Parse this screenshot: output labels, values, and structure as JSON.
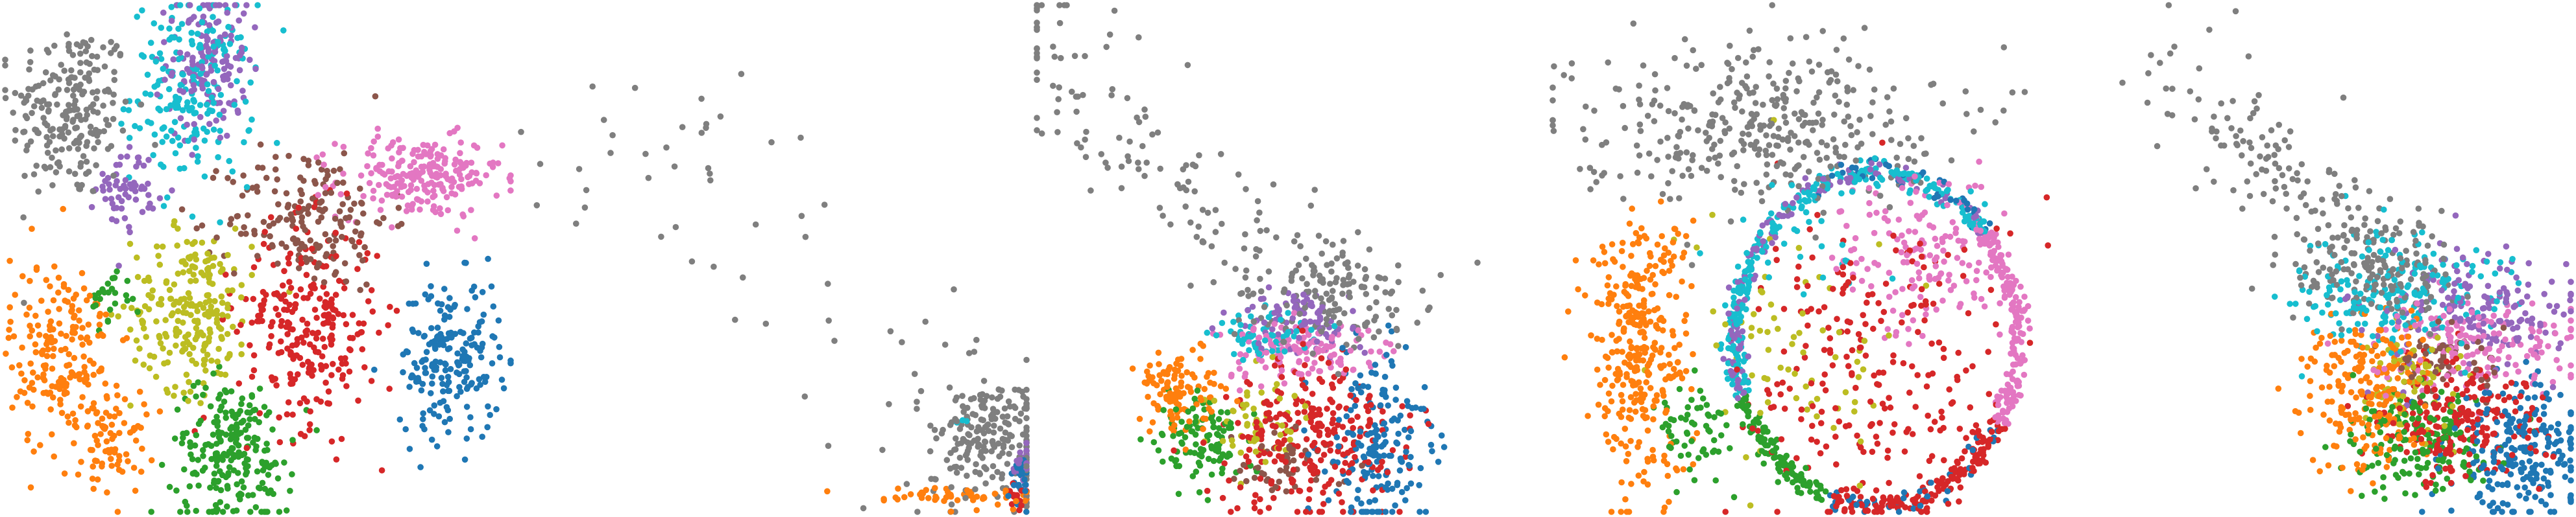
{
  "chart_data": [
    {
      "type": "scatter",
      "title": "",
      "xlabel": "",
      "ylabel": "",
      "axes_visible": false,
      "grid": false,
      "legend": "none",
      "xlim": [
        0,
        100
      ],
      "ylim": [
        0,
        100
      ],
      "point_color_names": [
        "blue",
        "orange",
        "green",
        "red",
        "purple",
        "brown",
        "pink",
        "gray",
        "olive",
        "cyan"
      ],
      "point_colors": [
        "#1f77b4",
        "#ff7f0e",
        "#2ca02c",
        "#d62728",
        "#9467bd",
        "#8c564b",
        "#e377c2",
        "#7f7f7f",
        "#bcbd22",
        "#17becf"
      ],
      "clusters": [
        {
          "color": "#7f7f7f",
          "cx": 13,
          "cy": 79,
          "sx": 6,
          "sy": 9,
          "n": 220
        },
        {
          "color": "#9467bd",
          "cx": 40,
          "cy": 89,
          "sx": 4,
          "sy": 8,
          "n": 150
        },
        {
          "color": "#17becf",
          "cx": 37,
          "cy": 83,
          "sx": 6,
          "sy": 9,
          "n": 200
        },
        {
          "color": "#9467bd",
          "cx": 24,
          "cy": 64,
          "sx": 3,
          "sy": 4,
          "n": 60
        },
        {
          "color": "#e377c2",
          "cx": 82,
          "cy": 66,
          "sx": 8,
          "sy": 4,
          "n": 220
        },
        {
          "color": "#8c564b",
          "cx": 60,
          "cy": 58,
          "sx": 8,
          "sy": 7,
          "n": 180
        },
        {
          "color": "#bcbd22",
          "cx": 37,
          "cy": 40,
          "sx": 6,
          "sy": 8,
          "n": 230
        },
        {
          "color": "#d62728",
          "cx": 60,
          "cy": 37,
          "sx": 7,
          "sy": 10,
          "n": 260
        },
        {
          "color": "#1f77b4",
          "cx": 88,
          "cy": 30,
          "sx": 5,
          "sy": 8,
          "n": 200
        },
        {
          "color": "#ff7f0e",
          "cx": 11,
          "cy": 31,
          "sx": 5,
          "sy": 10,
          "n": 200
        },
        {
          "color": "#ff7f0e",
          "cx": 22,
          "cy": 14,
          "sx": 3,
          "sy": 5,
          "n": 70
        },
        {
          "color": "#2ca02c",
          "cx": 45,
          "cy": 12,
          "sx": 6,
          "sy": 7,
          "n": 230
        },
        {
          "color": "#2ca02c",
          "cx": 21,
          "cy": 42,
          "sx": 2,
          "sy": 3,
          "n": 25
        }
      ]
    },
    {
      "type": "scatter",
      "title": "",
      "xlabel": "",
      "ylabel": "",
      "axes_visible": false,
      "grid": false,
      "legend": "none",
      "xlim": [
        0,
        100
      ],
      "ylim": [
        0,
        100
      ],
      "clusters": [
        {
          "color": "#7f7f7f",
          "cx": 55,
          "cy": 45,
          "sx": 22,
          "sy": 18,
          "n": 70,
          "trail": true
        },
        {
          "color": "#7f7f7f",
          "cx": 92,
          "cy": 15,
          "sx": 6,
          "sy": 6,
          "n": 200
        },
        {
          "color": "#ff7f0e",
          "cx": 88,
          "cy": 3,
          "sx": 8,
          "sy": 1,
          "n": 60
        },
        {
          "color": "#1f77b4",
          "cx": 99,
          "cy": 6,
          "sx": 1,
          "sy": 3,
          "n": 30
        },
        {
          "color": "#9467bd",
          "cx": 99,
          "cy": 9,
          "sx": 1,
          "sy": 2,
          "n": 20
        },
        {
          "color": "#d62728",
          "cx": 98,
          "cy": 3,
          "sx": 1,
          "sy": 1,
          "n": 15
        },
        {
          "color": "#17becf",
          "cx": 88,
          "cy": 18,
          "sx": 1,
          "sy": 1,
          "n": 3
        }
      ]
    },
    {
      "type": "scatter",
      "title": "",
      "xlabel": "",
      "ylabel": "",
      "axes_visible": false,
      "grid": false,
      "legend": "none",
      "xlim": [
        0,
        100
      ],
      "ylim": [
        0,
        100
      ],
      "clusters": [
        {
          "color": "#7f7f7f",
          "cx": 25,
          "cy": 68,
          "sx": 16,
          "sy": 14,
          "n": 160,
          "trail": true
        },
        {
          "color": "#7f7f7f",
          "cx": 60,
          "cy": 42,
          "sx": 8,
          "sy": 5,
          "n": 120
        },
        {
          "color": "#ff7f0e",
          "cx": 28,
          "cy": 24,
          "sx": 4,
          "sy": 4,
          "n": 110
        },
        {
          "color": "#2ca02c",
          "cx": 33,
          "cy": 14,
          "sx": 4,
          "sy": 4,
          "n": 110
        },
        {
          "color": "#e377c2",
          "cx": 52,
          "cy": 32,
          "sx": 7,
          "sy": 3,
          "n": 130
        },
        {
          "color": "#9467bd",
          "cx": 52,
          "cy": 38,
          "sx": 6,
          "sy": 3,
          "n": 90
        },
        {
          "color": "#17becf",
          "cx": 45,
          "cy": 35,
          "sx": 5,
          "sy": 3,
          "n": 60
        },
        {
          "color": "#d62728",
          "cx": 55,
          "cy": 14,
          "sx": 9,
          "sy": 8,
          "n": 260
        },
        {
          "color": "#1f77b4",
          "cx": 67,
          "cy": 14,
          "sx": 5,
          "sy": 9,
          "n": 180
        },
        {
          "color": "#bcbd22",
          "cx": 44,
          "cy": 18,
          "sx": 5,
          "sy": 5,
          "n": 60
        },
        {
          "color": "#8c564b",
          "cx": 50,
          "cy": 10,
          "sx": 6,
          "sy": 3,
          "n": 50
        }
      ]
    },
    {
      "type": "scatter",
      "title": "",
      "xlabel": "",
      "ylabel": "",
      "axes_visible": false,
      "grid": false,
      "legend": "none",
      "xlim": [
        0,
        100
      ],
      "ylim": [
        0,
        100
      ],
      "clusters": [
        {
          "color": "#7f7f7f",
          "cx": 40,
          "cy": 77,
          "sx": 18,
          "sy": 8,
          "n": 360
        },
        {
          "color": "#ff7f0e",
          "cx": 17,
          "cy": 33,
          "sx": 5,
          "sy": 14,
          "n": 330
        },
        {
          "color": "#e377c2",
          "cx": 73,
          "cy": 50,
          "sx": 8,
          "sy": 8,
          "n": 150
        },
        {
          "color": "#d62728",
          "cx": 65,
          "cy": 28,
          "sx": 14,
          "sy": 16,
          "n": 230
        },
        {
          "color": "#bcbd22",
          "cx": 48,
          "cy": 32,
          "sx": 10,
          "sy": 12,
          "n": 70
        },
        {
          "color": "#2ca02c",
          "cx": 28,
          "cy": 15,
          "sx": 4,
          "sy": 5,
          "n": 60
        },
        {
          "color": "#17becf",
          "cx": 50,
          "cy": 52,
          "sx": 8,
          "sy": 6,
          "n": 25
        }
      ],
      "ring": {
        "cx": 64,
        "cy": 34,
        "rx": 28,
        "ry": 33,
        "n": 900,
        "colors": [
          "#17becf",
          "#1f77b4",
          "#9467bd",
          "#e377c2",
          "#2ca02c",
          "#d62728",
          "#8c564b",
          "#7f7f7f"
        ]
      }
    },
    {
      "type": "scatter",
      "title": "",
      "xlabel": "",
      "ylabel": "",
      "axes_visible": false,
      "grid": false,
      "legend": "none",
      "xlim": [
        0,
        100
      ],
      "ylim": [
        0,
        100
      ],
      "clusters": [
        {
          "color": "#7f7f7f",
          "cx": 45,
          "cy": 64,
          "sx": 14,
          "sy": 12,
          "n": 160,
          "trail": true
        },
        {
          "color": "#7f7f7f",
          "cx": 60,
          "cy": 48,
          "sx": 8,
          "sy": 5,
          "n": 140
        },
        {
          "color": "#17becf",
          "cx": 65,
          "cy": 43,
          "sx": 10,
          "sy": 6,
          "n": 200
        },
        {
          "color": "#9467bd",
          "cx": 80,
          "cy": 40,
          "sx": 10,
          "sy": 6,
          "n": 160
        },
        {
          "color": "#e377c2",
          "cx": 80,
          "cy": 34,
          "sx": 10,
          "sy": 5,
          "n": 160
        },
        {
          "color": "#ff7f0e",
          "cx": 60,
          "cy": 24,
          "sx": 6,
          "sy": 8,
          "n": 220
        },
        {
          "color": "#2ca02c",
          "cx": 70,
          "cy": 14,
          "sx": 7,
          "sy": 5,
          "n": 160
        },
        {
          "color": "#d62728",
          "cx": 78,
          "cy": 18,
          "sx": 8,
          "sy": 6,
          "n": 220
        },
        {
          "color": "#1f77b4",
          "cx": 90,
          "cy": 12,
          "sx": 7,
          "sy": 7,
          "n": 220
        },
        {
          "color": "#bcbd22",
          "cx": 68,
          "cy": 26,
          "sx": 5,
          "sy": 5,
          "n": 70
        },
        {
          "color": "#8c564b",
          "cx": 75,
          "cy": 30,
          "sx": 6,
          "sy": 4,
          "n": 60
        }
      ]
    }
  ]
}
